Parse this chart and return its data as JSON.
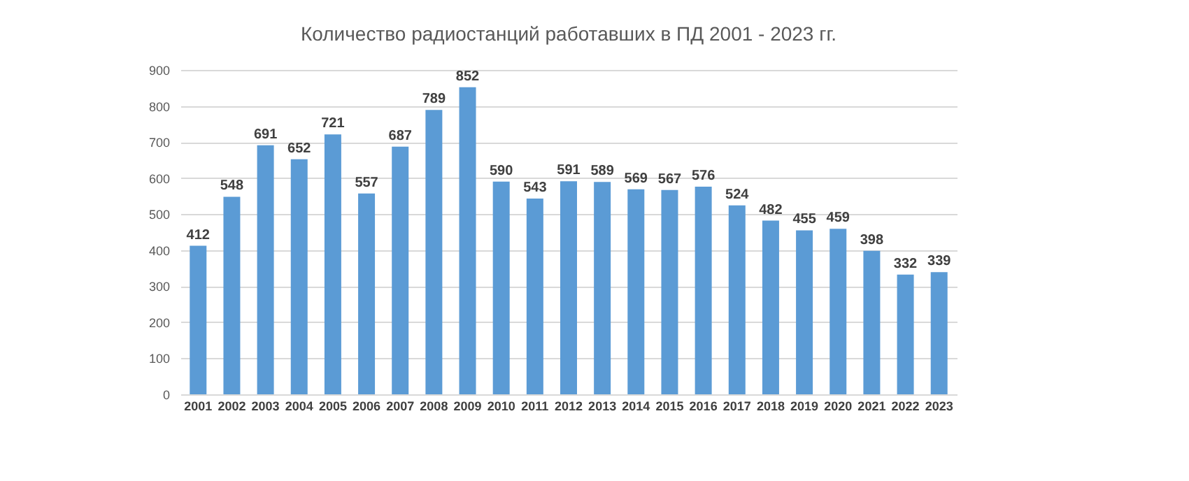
{
  "chart_data": {
    "type": "bar",
    "title": "Количество радиостанций работавших в ПД 2001 - 2023 гг.",
    "categories": [
      "2001",
      "2002",
      "2003",
      "2004",
      "2005",
      "2006",
      "2007",
      "2008",
      "2009",
      "2010",
      "2011",
      "2012",
      "2013",
      "2014",
      "2015",
      "2016",
      "2017",
      "2018",
      "2019",
      "2020",
      "2021",
      "2022",
      "2023"
    ],
    "values": [
      412,
      548,
      691,
      652,
      721,
      557,
      687,
      789,
      852,
      590,
      543,
      591,
      589,
      569,
      567,
      576,
      524,
      482,
      455,
      459,
      398,
      332,
      339
    ],
    "color": "#5b9bd5",
    "ylim": [
      0,
      900
    ],
    "yticks": [
      0,
      100,
      200,
      300,
      400,
      500,
      600,
      700,
      800,
      900
    ],
    "grid": "y",
    "data_labels": true
  }
}
